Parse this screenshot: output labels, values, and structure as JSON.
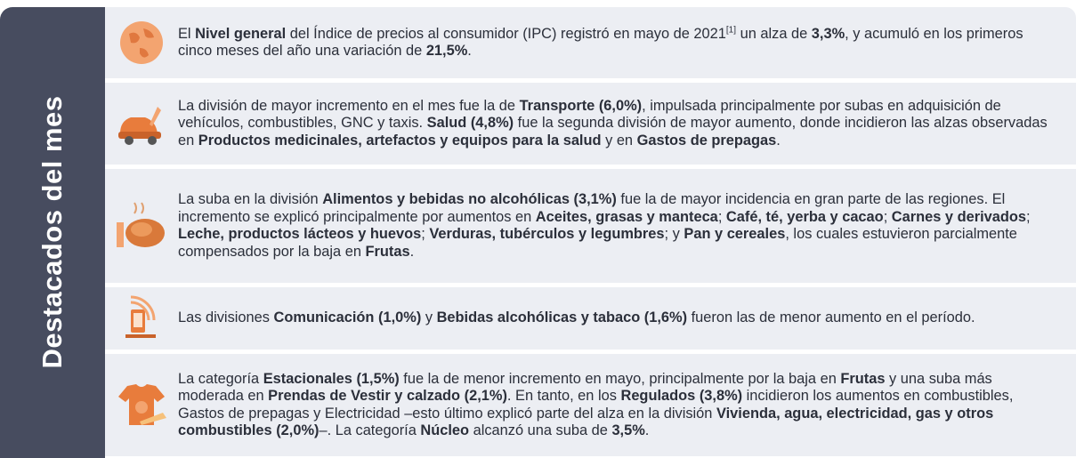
{
  "sidebar_title": "Destacados del mes",
  "items": [
    {
      "segments": [
        "El ",
        {
          "text": "Nivel general",
          "style": "bold"
        },
        " del Índice de precios al consumidor (IPC) registró en mayo de 2021",
        {
          "text": "[1]",
          "style": "sup"
        },
        " un alza de ",
        {
          "text": "3,3%",
          "style": "bold"
        },
        ", y acumuló en los primeros cinco meses del año una variación de ",
        {
          "text": "21,5%",
          "style": "bold"
        },
        "."
      ]
    },
    {
      "segments": [
        "La división de mayor incremento en el mes fue la de ",
        {
          "text": "Transporte (6,0%)",
          "style": "bold"
        },
        ", impulsada principalmente por subas en adquisición de vehículos, combustibles, GNC y taxis. ",
        {
          "text": "Salud (4,8%)",
          "style": "bold"
        },
        " fue la segunda división de mayor aumento, donde incidieron las alzas observadas en ",
        {
          "text": "Productos medicinales, artefactos y equipos para la salud",
          "style": "bold"
        },
        " y en ",
        {
          "text": "Gastos de prepagas",
          "style": "bold"
        },
        "."
      ]
    },
    {
      "segments": [
        "La suba en la división ",
        {
          "text": "Alimentos y bebidas no alcohólicas (3,1%)",
          "style": "bold"
        },
        " fue la de mayor incidencia en gran parte de las regiones. El incremento se explicó principalmente por aumentos en ",
        {
          "text": "Aceites, grasas y manteca",
          "style": "bold"
        },
        "; ",
        {
          "text": "Café, té, yerba y cacao",
          "style": "bold"
        },
        "; ",
        {
          "text": "Carnes y derivados",
          "style": "bold"
        },
        "; ",
        {
          "text": "Leche, productos lácteos y huevos",
          "style": "bold"
        },
        "; ",
        {
          "text": "Verduras, tubérculos y legumbres",
          "style": "bold"
        },
        "; y ",
        {
          "text": "Pan y cereales",
          "style": "bold"
        },
        ", los cuales estuvieron parcialmente compensados por la baja en ",
        {
          "text": "Frutas",
          "style": "bold"
        },
        "."
      ]
    },
    {
      "segments": [
        "Las divisiones ",
        {
          "text": "Comunicación (1,0%)",
          "style": "bold"
        },
        " y ",
        {
          "text": "Bebidas alcohólicas y tabaco (1,6%)",
          "style": "bold"
        },
        " fueron las de menor aumento en el período."
      ]
    },
    {
      "segments": [
        "La categoría ",
        {
          "text": "Estacionales (1,5%)",
          "style": "bold"
        },
        " fue la de menor incremento en mayo, principalmente por la baja en ",
        {
          "text": "Frutas",
          "style": "bold"
        },
        " y una suba más moderada en ",
        {
          "text": "Prendas de Vestir y calzado (2,1%)",
          "style": "bold"
        },
        ". En tanto, en los ",
        {
          "text": "Regulados (3,8%)",
          "style": "bold"
        },
        " incidieron los aumentos en combustibles, Gastos de prepagas y Electricidad –esto último explicó parte del alza en la división ",
        {
          "text": "Vivienda, agua, electricidad, gas y otros combustibles (2,0%)",
          "style": "bold"
        },
        "–. La categoría ",
        {
          "text": "Núcleo",
          "style": "bold"
        },
        " alcanzó una suba de ",
        {
          "text": "3,5%",
          "style": "bold"
        },
        "."
      ]
    }
  ]
}
